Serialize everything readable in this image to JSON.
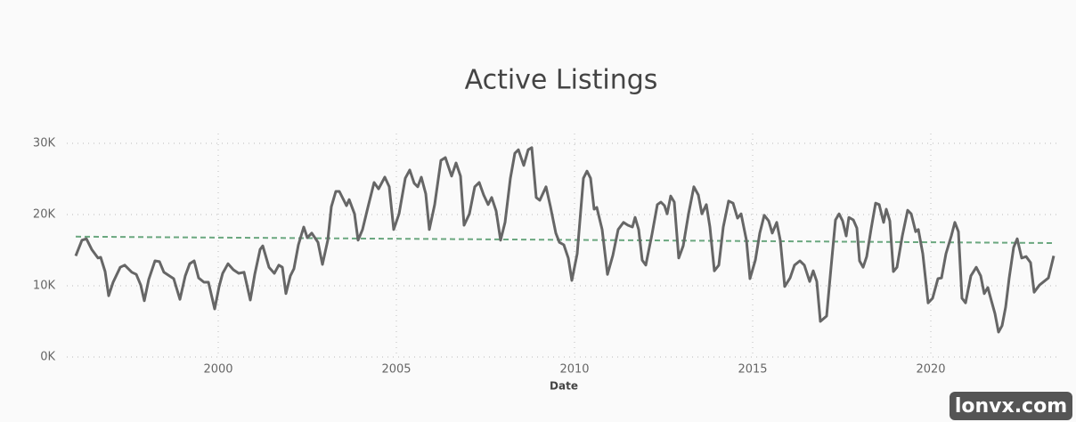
{
  "chart_data": {
    "type": "line",
    "title": "Active Listings",
    "x_label": "Date",
    "watermark": "lonvx.com",
    "x": [
      1996.0,
      1996.175,
      1996.3,
      1996.45,
      1996.625,
      1996.7,
      1996.825,
      1996.925,
      1997.05,
      1997.25,
      1997.375,
      1997.575,
      1997.7,
      1997.825,
      1997.925,
      1998.05,
      1998.225,
      1998.35,
      1998.475,
      1998.625,
      1998.75,
      1998.925,
      1999.075,
      1999.2,
      1999.325,
      1999.45,
      1999.6,
      1999.725,
      1999.9,
      2000.025,
      2000.125,
      2000.275,
      2000.425,
      2000.575,
      2000.725,
      2000.9,
      2001.025,
      2001.175,
      2001.25,
      2001.425,
      2001.575,
      2001.7,
      2001.8,
      2001.9,
      2002.025,
      2002.125,
      2002.25,
      2002.4,
      2002.5,
      2002.625,
      2002.8,
      2002.925,
      2003.075,
      2003.175,
      2003.3,
      2003.4,
      2003.6,
      2003.675,
      2003.825,
      2003.925,
      2004.05,
      2004.2,
      2004.375,
      2004.5,
      2004.675,
      2004.8,
      2004.925,
      2005.075,
      2005.25,
      2005.375,
      2005.5,
      2005.6,
      2005.7,
      2005.825,
      2005.925,
      2006.075,
      2006.25,
      2006.375,
      2006.55,
      2006.675,
      2006.8,
      2006.9,
      2007.05,
      2007.2,
      2007.325,
      2007.45,
      2007.575,
      2007.675,
      2007.8,
      2007.925,
      2008.05,
      2008.2,
      2008.325,
      2008.425,
      2008.575,
      2008.7,
      2008.8,
      2008.925,
      2009.025,
      2009.2,
      2009.325,
      2009.475,
      2009.575,
      2009.7,
      2009.825,
      2009.925,
      2010.075,
      2010.25,
      2010.35,
      2010.45,
      2010.55,
      2010.625,
      2010.775,
      2010.925,
      2011.075,
      2011.225,
      2011.375,
      2011.5,
      2011.625,
      2011.7,
      2011.8,
      2011.9,
      2012.0,
      2012.175,
      2012.325,
      2012.425,
      2012.525,
      2012.6,
      2012.7,
      2012.8,
      2012.925,
      2013.05,
      2013.2,
      2013.35,
      2013.475,
      2013.575,
      2013.7,
      2013.8,
      2013.925,
      2014.05,
      2014.175,
      2014.325,
      2014.45,
      2014.575,
      2014.675,
      2014.825,
      2014.925,
      2015.075,
      2015.2,
      2015.325,
      2015.45,
      2015.55,
      2015.675,
      2015.775,
      2015.9,
      2016.05,
      2016.175,
      2016.325,
      2016.45,
      2016.6,
      2016.7,
      2016.8,
      2016.9,
      2017.075,
      2017.2,
      2017.325,
      2017.425,
      2017.525,
      2017.625,
      2017.7,
      2017.825,
      2017.925,
      2018.0,
      2018.1,
      2018.2,
      2018.325,
      2018.45,
      2018.55,
      2018.675,
      2018.75,
      2018.85,
      2018.95,
      2019.05,
      2019.2,
      2019.35,
      2019.45,
      2019.575,
      2019.65,
      2019.775,
      2019.925,
      2020.05,
      2020.2,
      2020.3,
      2020.425,
      2020.575,
      2020.675,
      2020.775,
      2020.875,
      2020.975,
      2021.125,
      2021.275,
      2021.4,
      2021.5,
      2021.6,
      2021.7,
      2021.8,
      2021.9,
      2022.0,
      2022.1,
      2022.2,
      2022.325,
      2022.425,
      2022.55,
      2022.675,
      2022.8,
      2022.9,
      2023.05,
      2023.175,
      2023.3,
      2023.45
    ],
    "series": [
      {
        "color": "#666666",
        "values": [
          14200,
          16400,
          16600,
          15100,
          13900,
          14000,
          12000,
          8600,
          10500,
          12600,
          12900,
          11900,
          11600,
          10100,
          7900,
          10900,
          13500,
          13400,
          11900,
          11400,
          11000,
          8100,
          11400,
          13100,
          13500,
          11100,
          10500,
          10500,
          6750,
          9900,
          11750,
          13100,
          12250,
          11750,
          11900,
          8000,
          11600,
          15100,
          15600,
          12600,
          11750,
          12900,
          12600,
          8900,
          11400,
          12400,
          15750,
          18250,
          16750,
          17400,
          16100,
          13000,
          16400,
          21100,
          23250,
          23250,
          21250,
          22100,
          20100,
          16400,
          17900,
          21000,
          24500,
          23600,
          25250,
          23900,
          17900,
          20100,
          25100,
          26250,
          24400,
          23900,
          25250,
          22900,
          17900,
          21400,
          27600,
          28000,
          25400,
          27250,
          25400,
          18500,
          20100,
          23900,
          24500,
          22750,
          21400,
          22400,
          20500,
          16400,
          18900,
          25100,
          28600,
          29100,
          26900,
          29100,
          29400,
          22400,
          22000,
          23900,
          21100,
          17400,
          16100,
          15750,
          13900,
          10750,
          14500,
          25100,
          26100,
          25100,
          20750,
          21000,
          17900,
          11600,
          14250,
          17900,
          18900,
          18500,
          18250,
          19600,
          17900,
          13600,
          12900,
          17250,
          21400,
          21750,
          21250,
          20100,
          22600,
          21750,
          13900,
          15600,
          20100,
          23900,
          22750,
          20100,
          21400,
          18250,
          12100,
          12900,
          18250,
          21900,
          21600,
          19500,
          20100,
          16400,
          11000,
          13600,
          17400,
          19900,
          19100,
          17400,
          18900,
          16400,
          9900,
          11100,
          12900,
          13500,
          12900,
          10600,
          12100,
          10600,
          5000,
          5750,
          12600,
          19250,
          20100,
          19100,
          17000,
          19600,
          19250,
          18100,
          13500,
          12600,
          14100,
          18000,
          21600,
          21400,
          18900,
          20750,
          19100,
          12000,
          12600,
          17000,
          20600,
          20100,
          17600,
          17900,
          14500,
          7600,
          8250,
          11000,
          11100,
          14500,
          17000,
          18900,
          17600,
          8250,
          7600,
          11400,
          12600,
          11400,
          8900,
          9750,
          7900,
          6100,
          3500,
          4400,
          7000,
          11100,
          15400,
          16600,
          13900,
          14100,
          13250,
          9100,
          10100,
          10600,
          11100,
          14200
        ]
      }
    ],
    "trend": {
      "color": "#6aa77f",
      "x": [
        1996.0,
        2023.45
      ],
      "values": [
        16900,
        16000
      ]
    },
    "xlim": [
      1996.0,
      2023.45
    ],
    "xticks": [
      2000,
      2005,
      2010,
      2015,
      2020
    ],
    "ylim": [
      0,
      30000
    ],
    "yticks": [
      {
        "value": 0,
        "label": "0K"
      },
      {
        "value": 10000,
        "label": "10K"
      },
      {
        "value": 20000,
        "label": "20K"
      },
      {
        "value": 30000,
        "label": "30K"
      }
    ],
    "grid": true
  }
}
